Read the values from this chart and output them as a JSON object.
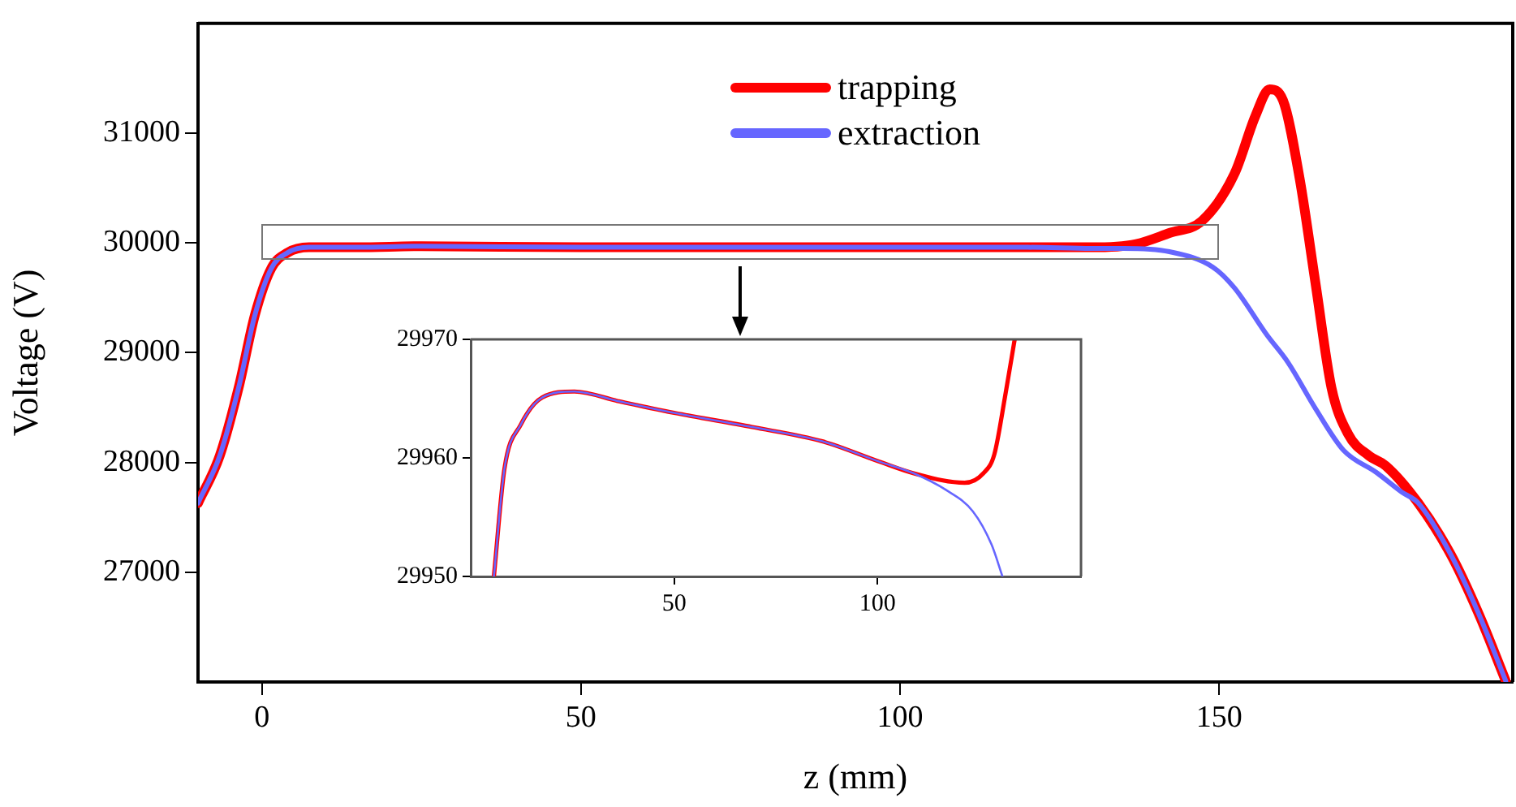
{
  "chart_data": [
    {
      "type": "line",
      "xlabel": "z (mm)",
      "ylabel": "Voltage (V)",
      "xlim": [
        -10,
        196
      ],
      "ylim": [
        26000,
        32000
      ],
      "xticks": [
        0,
        50,
        100,
        150
      ],
      "yticks": [
        27000,
        28000,
        29000,
        30000,
        31000
      ],
      "grid": false,
      "legend": "top",
      "marker": "none",
      "line_style": "solid",
      "series": [
        {
          "name": "trapping",
          "color": "#ff0000",
          "x": [
            -10,
            -6.6,
            -3.6,
            -1.1,
            1.5,
            4,
            7.4,
            10,
            15,
            25,
            50,
            75,
            100,
            120,
            130,
            137,
            142.2,
            147.3,
            152.4,
            155.7,
            157.9,
            160,
            162.6,
            165.1,
            167.6,
            170.2,
            173.5,
            176.1,
            181.2,
            186.3,
            190.6,
            194.9
          ],
          "values": [
            27630,
            28060,
            28690,
            29340,
            29770,
            29910,
            29960,
            29960,
            29960,
            29970,
            29960,
            29960,
            29960,
            29960,
            29960,
            29990,
            30090,
            30200,
            30630,
            31160,
            31400,
            31300,
            30590,
            29630,
            28680,
            28260,
            28060,
            27970,
            27630,
            27160,
            26630,
            26010
          ]
        },
        {
          "name": "extraction",
          "color": "#6666ff",
          "x": [
            -10,
            -6.6,
            -3.6,
            -1.1,
            1.5,
            4,
            7.4,
            10,
            15,
            25,
            50,
            75,
            100,
            120,
            130,
            135,
            142.2,
            149,
            152.4,
            157.5,
            160.8,
            165.1,
            169.5,
            174.6,
            178.6,
            181.2,
            186.3,
            190.6,
            194.9
          ],
          "values": [
            27630,
            28060,
            28690,
            29340,
            29770,
            29910,
            29960,
            29960,
            29960,
            29970,
            29960,
            29960,
            29960,
            29960,
            29950,
            29950,
            29920,
            29780,
            29590,
            29160,
            28910,
            28490,
            28110,
            27910,
            27730,
            27630,
            27160,
            26630,
            26010
          ]
        }
      ]
    },
    {
      "type": "line",
      "xlim": [
        0,
        150
      ],
      "ylim": [
        29950,
        29970
      ],
      "xticks": [
        50,
        100
      ],
      "yticks": [
        29950,
        29960,
        29970
      ],
      "grid": false,
      "marker": "none",
      "line_style": "solid",
      "series": [
        {
          "color": "#ff0000",
          "x": [
            5.7,
            8.3,
            12.3,
            17.6,
            25.5,
            36.1,
            50,
            69.2,
            86.4,
            100.3,
            108.9,
            121.4,
            126,
            128.7,
            131.3,
            133.7
          ],
          "values": [
            29950,
            29959.1,
            29962.8,
            29965.1,
            29965.6,
            29964.8,
            29963.8,
            29962.6,
            29961.4,
            29959.7,
            29958.7,
            29957.9,
            29958.7,
            29960.3,
            29965.1,
            29970
          ]
        },
        {
          "color": "#6666ff",
          "x": [
            5.7,
            8.3,
            12.3,
            17.6,
            25.5,
            36.1,
            50,
            69.2,
            86.4,
            100.3,
            108.9,
            116.8,
            123.4,
            128,
            130.7
          ],
          "values": [
            29950,
            29959.1,
            29962.8,
            29965.1,
            29965.6,
            29964.8,
            29963.8,
            29962.6,
            29961.4,
            29959.7,
            29958.7,
            29957.3,
            29955.5,
            29952.7,
            29950
          ]
        }
      ]
    }
  ]
}
